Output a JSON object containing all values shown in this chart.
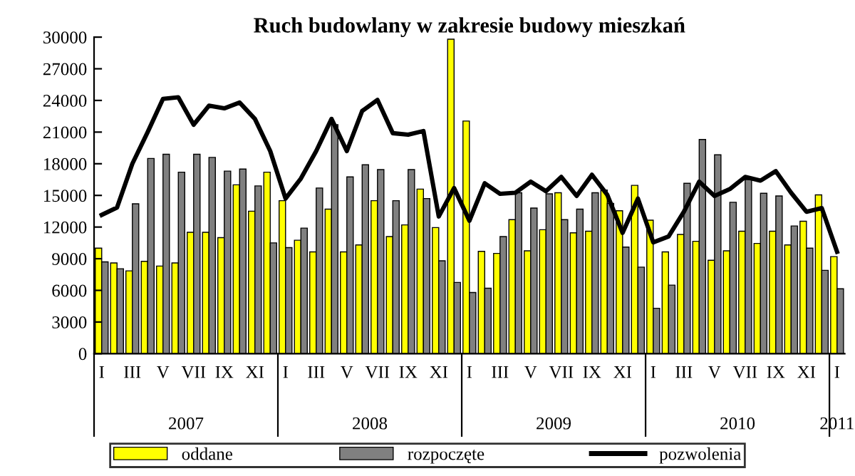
{
  "chart_data": {
    "type": "bar",
    "title": "Ruch budowlany w zakresie budowy mieszkań",
    "categories": [
      "I",
      null,
      "III",
      null,
      "V",
      null,
      "VII",
      null,
      "IX",
      null,
      "XI",
      null,
      "I",
      null,
      "III",
      null,
      "V",
      null,
      "VII",
      null,
      "IX",
      null,
      "XI",
      null,
      "I",
      null,
      "III",
      null,
      "V",
      null,
      "VII",
      null,
      "IX",
      null,
      "XI",
      null,
      "I",
      null,
      "III",
      null,
      "V",
      null,
      "VII",
      null,
      "IX",
      null,
      "XI",
      null,
      "I"
    ],
    "series": [
      {
        "name": "oddane",
        "color": "#ffff00",
        "values": [
          10000,
          8600,
          7850,
          8750,
          8300,
          8600,
          11500,
          11500,
          11000,
          16000,
          13500,
          17200,
          14500,
          10750,
          9650,
          13700,
          9650,
          10300,
          14500,
          11100,
          12200,
          15600,
          11950,
          29800,
          22050,
          9700,
          9500,
          12700,
          9750,
          11750,
          15250,
          11450,
          11600,
          15500,
          13550,
          15950,
          12650,
          9650,
          11300,
          10650,
          8850,
          9750,
          11600,
          10450,
          11600,
          10300,
          12550,
          15050,
          9200
        ]
      },
      {
        "name": "rozpoczęte",
        "color": "#808080",
        "values": [
          8700,
          8050,
          14200,
          18500,
          18900,
          17200,
          18900,
          18600,
          17300,
          17500,
          15900,
          10500,
          10050,
          11900,
          15700,
          21700,
          16750,
          17900,
          17450,
          14500,
          17450,
          14700,
          8800,
          6750,
          5800,
          6200,
          11100,
          15250,
          13800,
          15150,
          12700,
          13700,
          15250,
          14250,
          10100,
          8200,
          4300,
          6500,
          16150,
          20300,
          18850,
          14350,
          16500,
          15200,
          14950,
          12100,
          10000,
          7900,
          6150
        ]
      },
      {
        "name": "pozwolenia",
        "type": "line",
        "color": "#000000",
        "values": [
          13150,
          13850,
          18000,
          21000,
          24150,
          24300,
          21700,
          23500,
          23250,
          23800,
          22250,
          19200,
          14700,
          16600,
          19200,
          22250,
          19200,
          23000,
          24050,
          20900,
          20750,
          21100,
          13000,
          15700,
          12600,
          16150,
          15150,
          15250,
          16300,
          15400,
          16750,
          14950,
          16950,
          15050,
          11450,
          14700,
          10550,
          11100,
          13450,
          16300,
          14950,
          15600,
          16750,
          16400,
          17300,
          15250,
          13450,
          13800,
          9650
        ]
      }
    ],
    "annotations": [
      "2007",
      "2008",
      "2009",
      "2010",
      "2011"
    ],
    "ylim": [
      0,
      30000
    ],
    "yticks": [
      0,
      3000,
      6000,
      9000,
      12000,
      15000,
      18000,
      21000,
      24000,
      27000,
      30000
    ],
    "grid": false,
    "legend": "bottom"
  }
}
